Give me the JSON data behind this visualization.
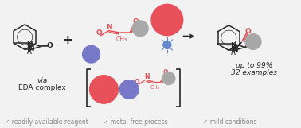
{
  "bg_color": "#f2f2f2",
  "red_color": "#e8505a",
  "blue_color": "#7878c8",
  "gray_color": "#a8a8a8",
  "dark_color": "#282828",
  "check_color": "#888888",
  "bottom_labels": [
    "✓ readily available reagent",
    "✓ metal-free process",
    "✓ mild conditions"
  ],
  "fig_w": 3.78,
  "fig_h": 1.61,
  "dpi": 100
}
